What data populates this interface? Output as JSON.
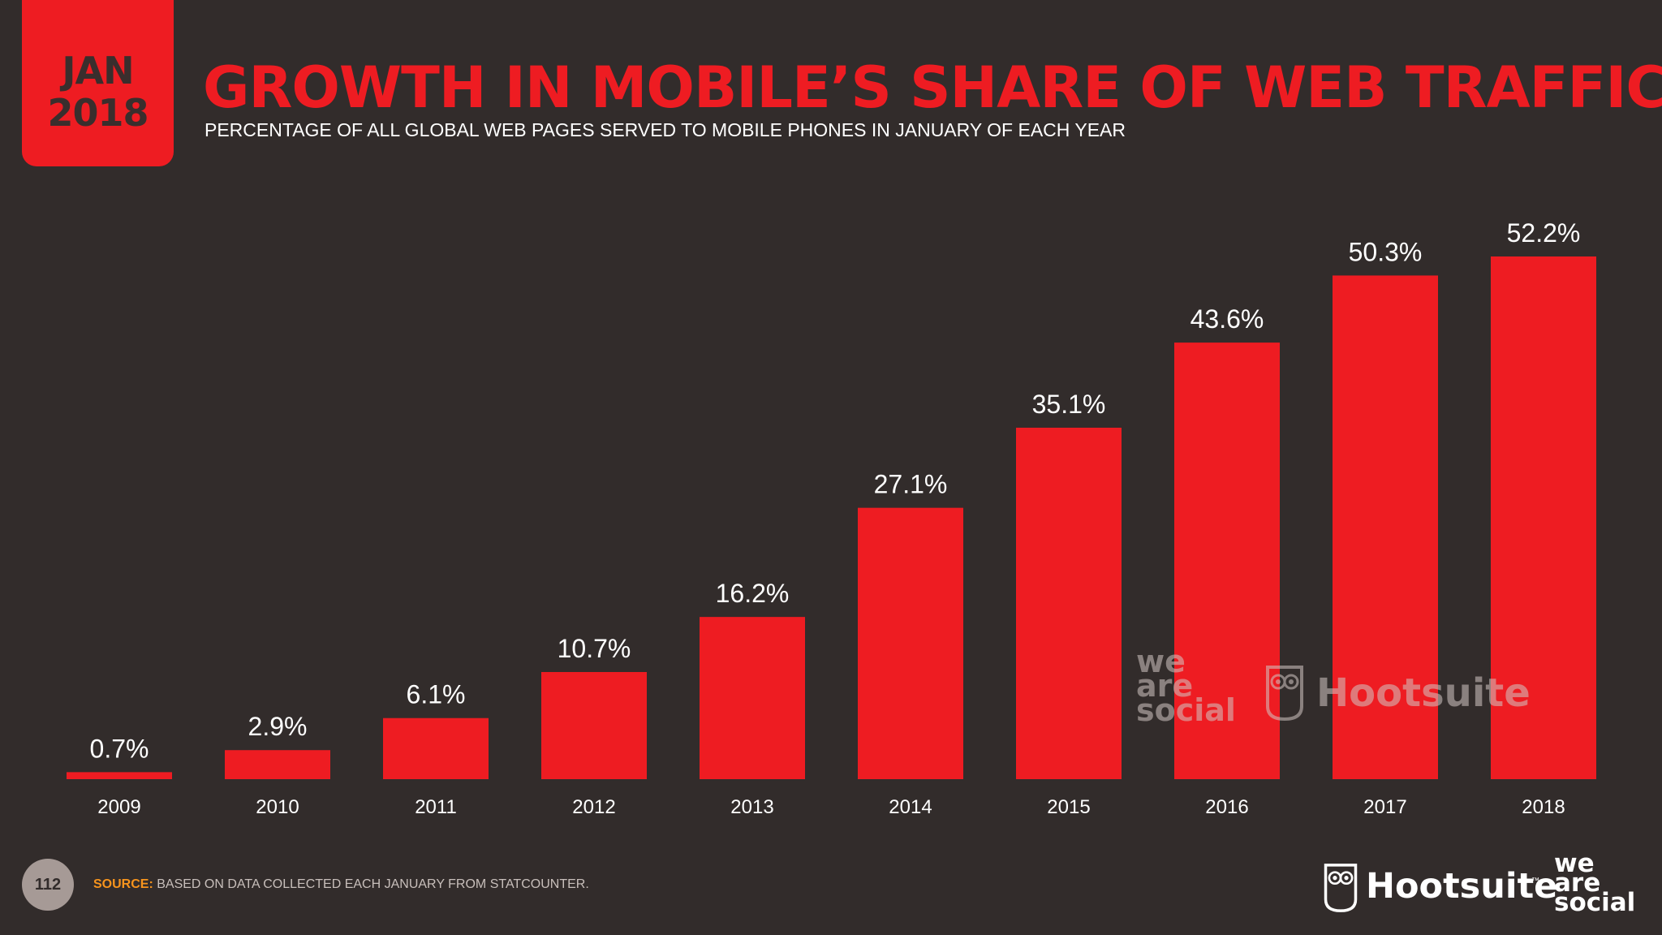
{
  "header": {
    "date_month": "JAN",
    "date_year": "2018",
    "title": "GROWTH IN MOBILE’S SHARE OF WEB TRAFFIC",
    "subtitle": "PERCENTAGE OF ALL GLOBAL WEB PAGES SERVED TO MOBILE PHONES IN JANUARY OF EACH YEAR"
  },
  "chart_data": {
    "type": "bar",
    "title": "GROWTH IN MOBILE’S SHARE OF WEB TRAFFIC",
    "subtitle": "PERCENTAGE OF ALL GLOBAL WEB PAGES SERVED TO MOBILE PHONES IN JANUARY OF EACH YEAR",
    "categories": [
      "2009",
      "2010",
      "2011",
      "2012",
      "2013",
      "2014",
      "2015",
      "2016",
      "2017",
      "2018"
    ],
    "values": [
      0.7,
      2.9,
      6.1,
      10.7,
      16.2,
      27.1,
      35.1,
      43.6,
      50.3,
      52.2
    ],
    "value_labels": [
      "0.7%",
      "2.9%",
      "6.1%",
      "10.7%",
      "16.2%",
      "27.1%",
      "35.1%",
      "43.6%",
      "50.3%",
      "52.2%"
    ],
    "unit": "%",
    "xlabel": "",
    "ylabel": "",
    "ylim": [
      0,
      52.2
    ],
    "grid": false,
    "legend": "none",
    "bar_color": "#ee1c22"
  },
  "watermark": {
    "brand_social_lines": [
      "we",
      "are",
      "social"
    ],
    "brand_hootsuite": "Hootsuite"
  },
  "footer": {
    "page_number": "112",
    "source_label": "SOURCE:",
    "source_text": "BASED ON DATA COLLECTED EACH JANUARY FROM STATCOUNTER.",
    "brand_hootsuite": "Hootsuite",
    "brand_tm": "™",
    "brand_social_lines": [
      "we",
      "are",
      "social"
    ]
  },
  "colors": {
    "background": "#322c2b",
    "accent_red": "#ee1c22",
    "source_orange": "#f7941d",
    "text_white": "#ffffff"
  },
  "icons": [
    "hootsuite-owl-icon"
  ]
}
